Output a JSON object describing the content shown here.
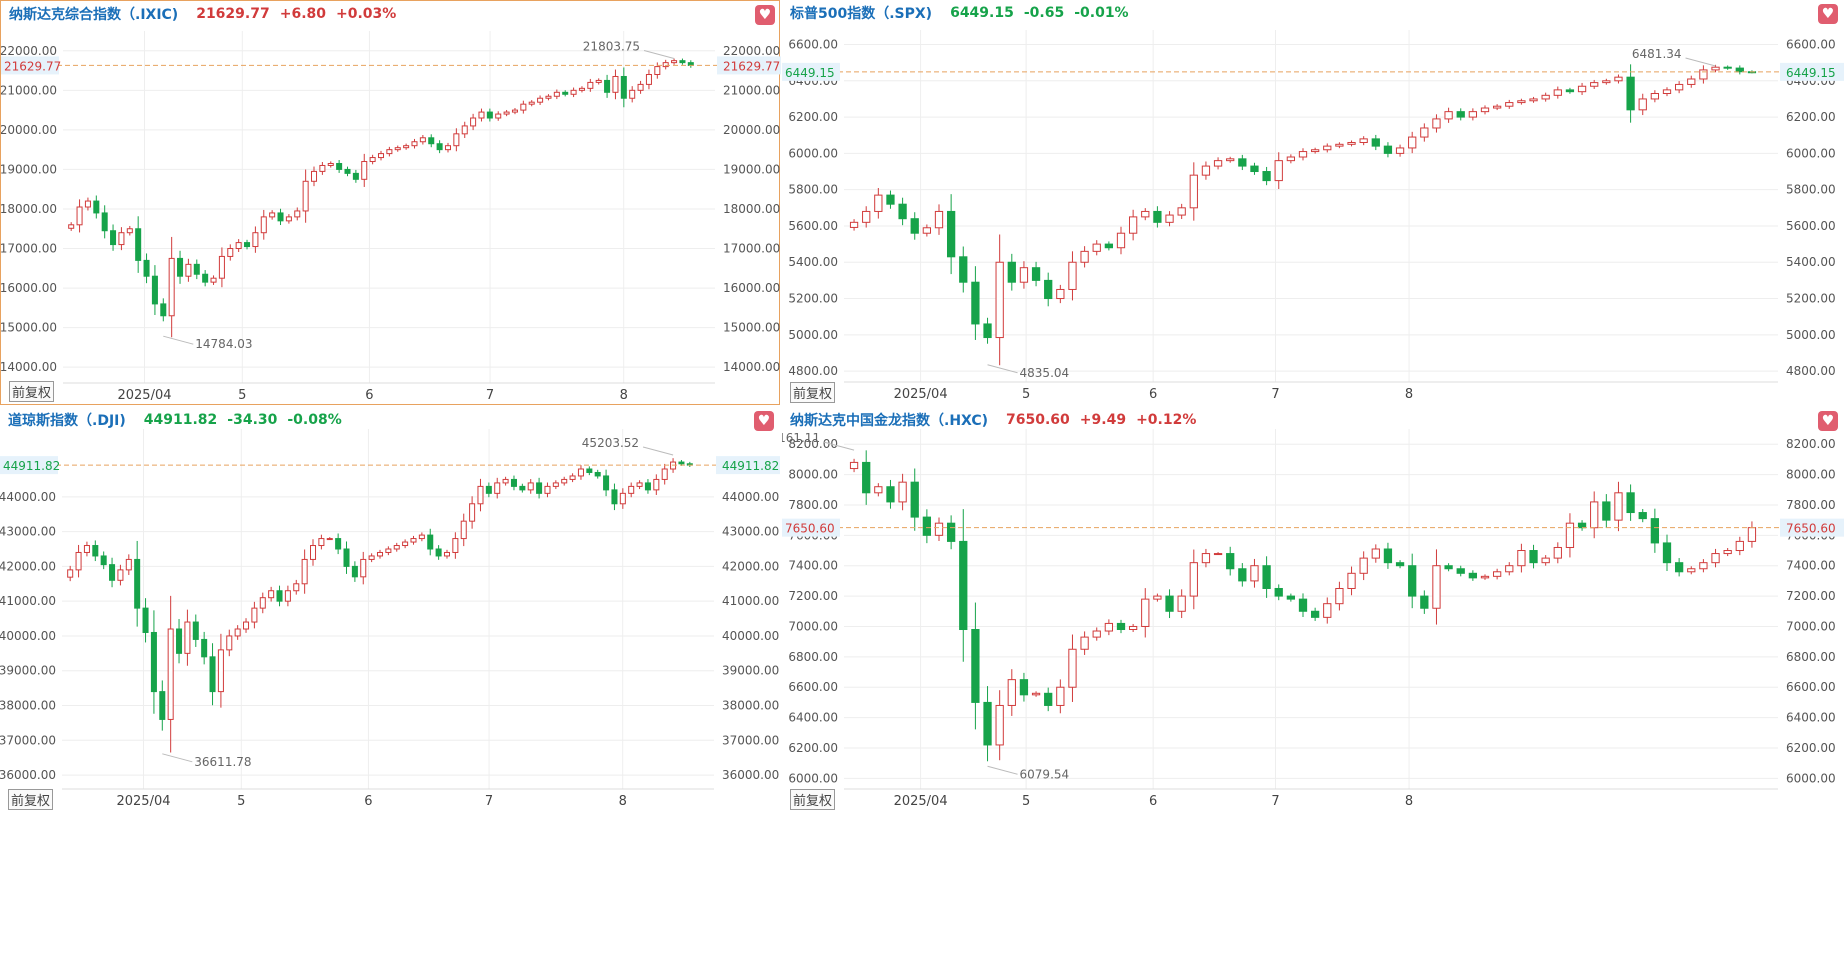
{
  "colors": {
    "up": "#d13b3b",
    "down": "#16a34a",
    "title": "#1b6fb8",
    "refline": "#e8a25f",
    "grid": "#eeeeee"
  },
  "common": {
    "x_labels": [
      "2025/04",
      "5",
      "6",
      "7",
      "8"
    ],
    "adjust_label": "前复权",
    "fav_icon": "heart-icon"
  },
  "panels": [
    {
      "id": "ixic",
      "name": "纳斯达克综合指数（.IXIC)",
      "price": "21629.77",
      "change": "+6.80",
      "pct": "+0.03%",
      "direction": "up",
      "price_label_left": "21629.77",
      "price_label_right": "21629.77",
      "high_label": "21803.75",
      "low_label": "14784.03",
      "y_ticks_left": [
        "22000.00",
        "21000.00",
        "20000.00",
        "19000.00",
        "18000.00",
        "17000.00",
        "16000.00",
        "15000.00",
        "14000.00"
      ],
      "y_ticks_right": [
        "22000.00",
        "21000.00",
        "20000.00",
        "19000.00",
        "18000.00",
        "17000.00",
        "16000.00",
        "15000.00",
        "14000.00"
      ],
      "chart_data": {
        "type": "candlestick",
        "y_ticks": [
          22000,
          21000,
          20000,
          19000,
          18000,
          17000,
          16000,
          15000,
          14000
        ],
        "ylim": [
          13600,
          22500
        ],
        "current": 21629.77,
        "high": 21803.75,
        "low": 14784.03,
        "closes": [
          17600,
          18050,
          18200,
          17900,
          17450,
          17100,
          17400,
          17500,
          16700,
          16300,
          15600,
          15300,
          16750,
          16300,
          16600,
          16350,
          16150,
          16250,
          16800,
          17000,
          17150,
          17050,
          17400,
          17800,
          17900,
          17700,
          17800,
          17950,
          18700,
          18950,
          19100,
          19150,
          19000,
          18900,
          18750,
          19200,
          19300,
          19400,
          19500,
          19550,
          19600,
          19700,
          19800,
          19650,
          19500,
          19600,
          19900,
          20100,
          20300,
          20450,
          20300,
          20400,
          20450,
          20500,
          20650,
          20700,
          20800,
          20850,
          20950,
          20900,
          21000,
          21050,
          21200,
          21250,
          20950,
          21350,
          20800,
          21000,
          21150,
          21400,
          21600,
          21700,
          21750,
          21700,
          21629.77
        ]
      }
    },
    {
      "id": "spx",
      "name": "标普500指数（.SPX)",
      "price": "6449.15",
      "change": "-0.65",
      "pct": "-0.01%",
      "direction": "down",
      "price_label_left": "6449.15",
      "price_label_right": "6449.15",
      "high_label": "6481.34",
      "low_label": "4835.04",
      "y_ticks_left": [
        "6600.00",
        "6400.00",
        "6200.00",
        "6000.00",
        "5800.00",
        "5600.00",
        "5400.00",
        "5200.00",
        "5000.00",
        "4800.00"
      ],
      "y_ticks_right": [
        "6600.00",
        "6400.00",
        "6200.00",
        "6000.00",
        "5800.00",
        "5600.00",
        "5400.00",
        "5200.00",
        "5000.00",
        "4800.00"
      ],
      "chart_data": {
        "type": "candlestick",
        "y_ticks": [
          6600,
          6400,
          6200,
          6000,
          5800,
          5600,
          5400,
          5200,
          5000,
          4800
        ],
        "ylim": [
          4740,
          6680
        ],
        "current": 6449.15,
        "high": 6481.34,
        "low": 4835.04,
        "closes": [
          5620,
          5680,
          5770,
          5720,
          5640,
          5560,
          5590,
          5680,
          5430,
          5290,
          5060,
          4985,
          5400,
          5290,
          5370,
          5300,
          5200,
          5250,
          5400,
          5460,
          5500,
          5480,
          5560,
          5650,
          5680,
          5620,
          5660,
          5700,
          5880,
          5930,
          5960,
          5970,
          5930,
          5900,
          5850,
          5960,
          5980,
          6010,
          6020,
          6040,
          6050,
          6060,
          6080,
          6040,
          6000,
          6030,
          6090,
          6140,
          6190,
          6230,
          6200,
          6230,
          6250,
          6260,
          6280,
          6290,
          6300,
          6320,
          6350,
          6340,
          6370,
          6390,
          6400,
          6420,
          6240,
          6300,
          6330,
          6350,
          6380,
          6410,
          6460,
          6475,
          6470,
          6450,
          6449.15
        ]
      }
    },
    {
      "id": "dji",
      "name": "道琼斯指数（.DJI)",
      "price": "44911.82",
      "change": "-34.30",
      "pct": "-0.08%",
      "direction": "down",
      "price_label_left": "44911.82",
      "price_label_right": "44911.82",
      "high_label": "45203.52",
      "low_label": "36611.78",
      "y_ticks_left": [
        "44000.00",
        "43000.00",
        "42000.00",
        "41000.00",
        "40000.00",
        "39000.00",
        "38000.00",
        "37000.00",
        "36000.00"
      ],
      "y_ticks_right": [
        "44000.00",
        "43000.00",
        "42000.00",
        "41000.00",
        "40000.00",
        "39000.00",
        "38000.00",
        "37000.00",
        "36000.00"
      ],
      "chart_data": {
        "type": "candlestick",
        "y_ticks": [
          44000,
          43000,
          42000,
          41000,
          40000,
          39000,
          38000,
          37000,
          36000
        ],
        "ylim": [
          35600,
          45950
        ],
        "current": 44911.82,
        "high": 45203.52,
        "low": 36611.78,
        "closes": [
          41900,
          42400,
          42600,
          42300,
          42050,
          41600,
          41900,
          42200,
          40800,
          40100,
          38400,
          37600,
          40200,
          39500,
          40400,
          39900,
          39400,
          38400,
          39600,
          40000,
          40200,
          40400,
          40800,
          41100,
          41300,
          41000,
          41300,
          41500,
          42200,
          42600,
          42800,
          42800,
          42500,
          42000,
          41700,
          42200,
          42300,
          42400,
          42500,
          42600,
          42700,
          42800,
          42900,
          42500,
          42300,
          42400,
          42800,
          43300,
          43800,
          44300,
          44100,
          44400,
          44500,
          44300,
          44200,
          44400,
          44100,
          44300,
          44400,
          44500,
          44600,
          44800,
          44700,
          44600,
          44200,
          43800,
          44100,
          44300,
          44400,
          44200,
          44500,
          44800,
          45000,
          44950,
          44911.82
        ]
      }
    },
    {
      "id": "hxc",
      "name": "纳斯达克中国金龙指数（.HXC)",
      "price": "7650.60",
      "change": "+9.49",
      "pct": "+0.12%",
      "direction": "up",
      "price_label_left": "7650.60",
      "price_label_right": "7650.60",
      "high_label": "8161.11",
      "low_label": "6079.54",
      "y_ticks_left": [
        "8200.00",
        "8000.00",
        "7800.00",
        "7600.00",
        "7400.00",
        "7200.00",
        "7000.00",
        "6800.00",
        "6600.00",
        "6400.00",
        "6200.00",
        "6000.00"
      ],
      "y_ticks_right": [
        "8200.00",
        "8000.00",
        "7800.00",
        "7600.00",
        "7400.00",
        "7200.00",
        "7000.00",
        "6800.00",
        "6600.00",
        "6400.00",
        "6200.00",
        "6000.00"
      ],
      "chart_data": {
        "type": "candlestick",
        "y_ticks": [
          8200,
          8000,
          7800,
          7600,
          7400,
          7200,
          7000,
          6800,
          6600,
          6400,
          6200,
          6000
        ],
        "ylim": [
          5930,
          8300
        ],
        "current": 7650.6,
        "high": 8161.11,
        "low": 6079.54,
        "closes": [
          8080,
          7880,
          7920,
          7820,
          7950,
          7720,
          7600,
          7680,
          7560,
          6980,
          6500,
          6220,
          6480,
          6650,
          6550,
          6560,
          6480,
          6600,
          6850,
          6930,
          6970,
          7020,
          6980,
          7000,
          7180,
          7200,
          7100,
          7200,
          7420,
          7480,
          7480,
          7380,
          7300,
          7400,
          7250,
          7200,
          7180,
          7100,
          7060,
          7150,
          7250,
          7350,
          7450,
          7510,
          7420,
          7400,
          7200,
          7120,
          7400,
          7380,
          7350,
          7320,
          7330,
          7360,
          7400,
          7500,
          7420,
          7450,
          7520,
          7680,
          7650,
          7820,
          7700,
          7880,
          7750,
          7710,
          7550,
          7420,
          7360,
          7380,
          7420,
          7480,
          7500,
          7560,
          7650.6
        ]
      }
    }
  ]
}
